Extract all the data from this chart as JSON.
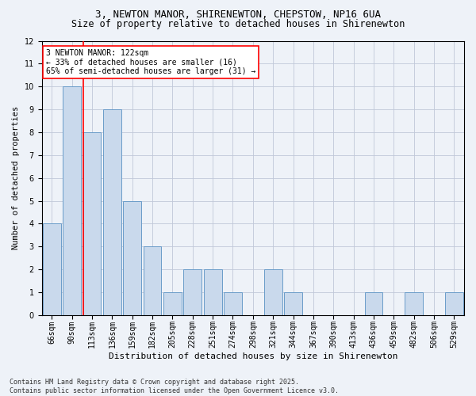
{
  "title1": "3, NEWTON MANOR, SHIRENEWTON, CHEPSTOW, NP16 6UA",
  "title2": "Size of property relative to detached houses in Shirenewton",
  "xlabel": "Distribution of detached houses by size in Shirenewton",
  "ylabel": "Number of detached properties",
  "categories": [
    "66sqm",
    "90sqm",
    "113sqm",
    "136sqm",
    "159sqm",
    "182sqm",
    "205sqm",
    "228sqm",
    "251sqm",
    "274sqm",
    "298sqm",
    "321sqm",
    "344sqm",
    "367sqm",
    "390sqm",
    "413sqm",
    "436sqm",
    "459sqm",
    "482sqm",
    "506sqm",
    "529sqm"
  ],
  "values": [
    4,
    10,
    8,
    9,
    5,
    3,
    1,
    2,
    2,
    1,
    0,
    2,
    1,
    0,
    0,
    0,
    1,
    0,
    1,
    0,
    1
  ],
  "bar_color": "#c9d9ec",
  "bar_edge_color": "#6a9cc9",
  "grid_color": "#c0c8d8",
  "background_color": "#eef2f8",
  "annotation_text": "3 NEWTON MANOR: 122sqm\n← 33% of detached houses are smaller (16)\n65% of semi-detached houses are larger (31) →",
  "annotation_box_color": "white",
  "annotation_box_edge_color": "red",
  "vline_x_index": 2,
  "vline_color": "red",
  "ylim": [
    0,
    12
  ],
  "yticks": [
    0,
    1,
    2,
    3,
    4,
    5,
    6,
    7,
    8,
    9,
    10,
    11,
    12
  ],
  "footnote": "Contains HM Land Registry data © Crown copyright and database right 2025.\nContains public sector information licensed under the Open Government Licence v3.0.",
  "title1_fontsize": 9,
  "title2_fontsize": 8.5,
  "xlabel_fontsize": 8,
  "ylabel_fontsize": 7.5,
  "tick_fontsize": 7,
  "annotation_fontsize": 7,
  "footnote_fontsize": 6
}
